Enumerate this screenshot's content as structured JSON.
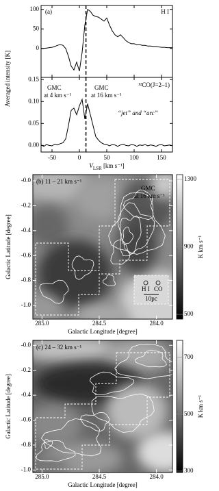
{
  "chart_data": [
    {
      "type": "line",
      "annotations": [
        "(a)",
        "H I"
      ],
      "ylabel": "Averaged intensity [K]",
      "x": [
        -70,
        -65,
        -60,
        -55,
        -50,
        -45,
        -40,
        -35,
        -30,
        -25,
        -20,
        -15,
        -10,
        -5,
        0,
        5,
        10,
        15,
        20,
        25,
        30,
        35,
        40,
        45,
        50,
        55,
        60,
        65,
        70,
        75,
        80,
        85,
        90,
        95,
        100,
        105,
        110,
        115,
        120,
        125,
        130,
        135,
        140,
        145,
        150,
        155,
        160,
        165,
        170
      ],
      "values": [
        0,
        0,
        1,
        2,
        3,
        5,
        8,
        10,
        8,
        0,
        -20,
        -45,
        -55,
        -35,
        -58,
        -10,
        60,
        100,
        95,
        85,
        82,
        80,
        75,
        70,
        78,
        60,
        45,
        35,
        30,
        35,
        28,
        20,
        15,
        12,
        12,
        10,
        10,
        8,
        8,
        6,
        6,
        5,
        5,
        4,
        3,
        3,
        2,
        2,
        2
      ],
      "xlim": [
        -70,
        170
      ],
      "ylim": [
        -74,
        110
      ],
      "xticks": [
        -50,
        0,
        50,
        100,
        150
      ],
      "yticks": [
        0,
        50,
        100
      ],
      "vline": 12,
      "color": "#000000"
    },
    {
      "type": "line",
      "annotations": [
        "¹²CO(J=2–1)",
        "GMC",
        "at 4 km s⁻¹",
        "GMC",
        "at 16 km s⁻¹",
        "“jet” and “arc”"
      ],
      "xlabel": [
        "V",
        "LSR",
        " [km s⁻¹]"
      ],
      "x": [
        -70,
        -65,
        -60,
        -55,
        -50,
        -45,
        -40,
        -35,
        -30,
        -25,
        -20,
        -15,
        -10,
        -5,
        0,
        5,
        10,
        15,
        20,
        25,
        30,
        35,
        40,
        45,
        50,
        55,
        60,
        65,
        70,
        75,
        80,
        85,
        90,
        95,
        100,
        105,
        110,
        115,
        120,
        125,
        130,
        135,
        140,
        145,
        150,
        155,
        160,
        165,
        170
      ],
      "values": [
        0.001,
        -0.002,
        0.002,
        0,
        -0.001,
        0.003,
        0.001,
        0.004,
        0.006,
        0.015,
        0.045,
        0.08,
        0.085,
        0.07,
        0.09,
        0.105,
        0.06,
        0.095,
        0.07,
        0.045,
        0.02,
        0.012,
        0.006,
        0.003,
        0.002,
        -0.001,
        0.002,
        0.001,
        -0.002,
        0.001,
        0.003,
        0,
        -0.001,
        0.002,
        0.001,
        -0.002,
        0.001,
        0,
        0.002,
        -0.001,
        0.001,
        0,
        -0.002,
        0.001,
        0.002,
        -0.001,
        0,
        0.001,
        -0.001
      ],
      "xlim": [
        -70,
        170
      ],
      "ylim": [
        -0.015,
        0.155
      ],
      "xticks": [
        -50,
        0,
        50,
        100,
        150
      ],
      "yticks": [
        {
          "value": 0,
          "label": "0.00"
        },
        {
          "value": 0.05,
          "label": "0.05"
        },
        {
          "value": 0.1,
          "label": "0.10"
        },
        {
          "value": 0.15,
          "label": "0.15"
        }
      ],
      "vline": 12,
      "color": "#000000"
    },
    {
      "type": "image",
      "title": "(b) 11 – 21 km s⁻¹",
      "annotations": [
        "GMC",
        "at 16 km s⁻¹"
      ],
      "beam_labels": [
        "H I",
        "CO"
      ],
      "scale_label": "10pc",
      "xlabel": "Galactic Longitude [degree]",
      "ylabel": "Galactic Latitude [degree]",
      "xlim": [
        285.08,
        283.86
      ],
      "ylim": [
        -1.11,
        0.05
      ],
      "xticks": [
        {
          "value": 285,
          "label": "285.0"
        },
        284.5,
        {
          "value": 284,
          "label": "284.0"
        }
      ],
      "yticks": [
        {
          "value": 0,
          "label": "-0.0"
        },
        -0.2,
        -0.4,
        -0.6,
        -0.8,
        {
          "value": -1,
          "label": "-1.0"
        }
      ],
      "colorbar_label": "K km s⁻¹",
      "clim": [
        472,
        1328
      ],
      "cticks": [
        500,
        900,
        1300
      ]
    },
    {
      "type": "image",
      "title": "(c) 24 – 32 km s⁻¹",
      "xlabel": "Galactic Longitude [degree]",
      "ylabel": "Galactic Latitude [degree]",
      "xlim": [
        285.08,
        283.86
      ],
      "ylim": [
        -1.02,
        0.04
      ],
      "xticks": [
        {
          "value": 285,
          "label": "285.0"
        },
        284.5,
        {
          "value": 284,
          "label": "284.0"
        }
      ],
      "yticks": [
        {
          "value": 0,
          "label": "-0.0"
        },
        -0.2,
        -0.4,
        -0.6,
        -0.8,
        {
          "value": -1,
          "label": "-1.0"
        }
      ],
      "colorbar_label": "K km s⁻¹",
      "clim": [
        295,
        760
      ],
      "cticks": [
        300,
        500,
        700
      ]
    }
  ]
}
